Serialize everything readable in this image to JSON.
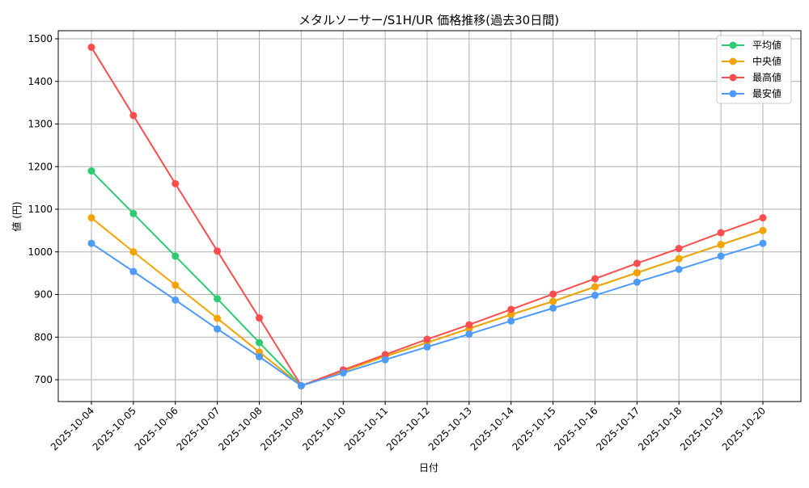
{
  "chart_data": {
    "type": "line",
    "title": "メタルソーサー/S1H/UR 価格推移(過去30日間)",
    "xlabel": "日付",
    "ylabel": "値 (円)",
    "ylim": [
      645,
      1522
    ],
    "yticks": [
      700,
      800,
      900,
      1000,
      1100,
      1200,
      1300,
      1400,
      1500
    ],
    "grid": true,
    "legend_position": "top-right",
    "categories": [
      "2025-10-04",
      "2025-10-05",
      "2025-10-06",
      "2025-10-07",
      "2025-10-08",
      "2025-10-09",
      "2025-10-10",
      "2025-10-11",
      "2025-10-12",
      "2025-10-13",
      "2025-10-14",
      "2025-10-15",
      "2025-10-16",
      "2025-10-17",
      "2025-10-18",
      "2025-10-19",
      "2025-10-20"
    ],
    "series": [
      {
        "name": "平均値",
        "color": "#2ecc71",
        "values": [
          1190,
          1090,
          990,
          890,
          787,
          686,
          720,
          755,
          787,
          820,
          853,
          884,
          918,
          951,
          984,
          1017,
          1050
        ]
      },
      {
        "name": "中央値",
        "color": "#f5a300",
        "values": [
          1080,
          1000,
          922,
          844,
          765,
          686,
          720,
          755,
          787,
          820,
          853,
          884,
          918,
          951,
          984,
          1017,
          1050
        ]
      },
      {
        "name": "最高値",
        "color": "#ff4d4d",
        "values": [
          1480,
          1320,
          1160,
          1002,
          845,
          686,
          723,
          759,
          795,
          829,
          865,
          901,
          937,
          973,
          1008,
          1045,
          1080
        ]
      },
      {
        "name": "最安値",
        "color": "#4d9bff",
        "values": [
          1020,
          954,
          887,
          819,
          754,
          686,
          716,
          747,
          777,
          807,
          838,
          868,
          898,
          929,
          959,
          990,
          1020
        ]
      }
    ]
  }
}
